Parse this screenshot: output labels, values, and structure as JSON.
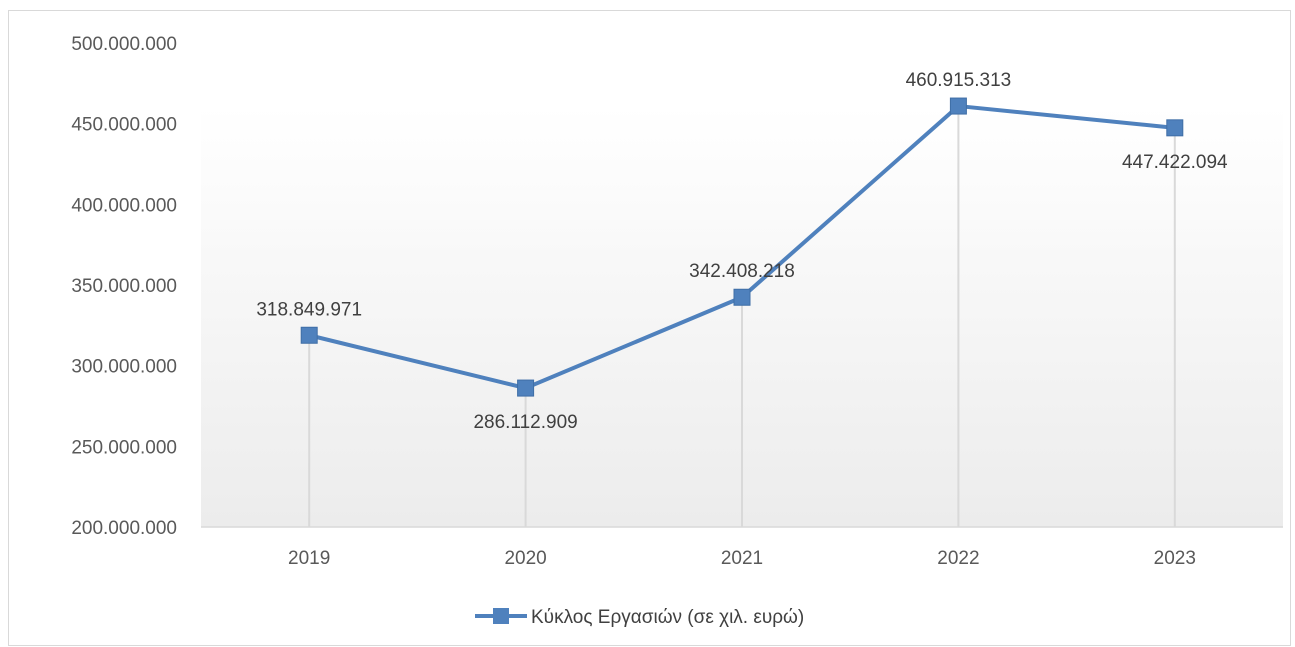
{
  "chart_data": {
    "type": "line",
    "categories": [
      "2019",
      "2020",
      "2021",
      "2022",
      "2023"
    ],
    "series": [
      {
        "name": "Κύκλος Εργασιών (σε χιλ. ευρώ)",
        "values": [
          318849971,
          286112909,
          342408218,
          460915313,
          447422094
        ],
        "labels": [
          "318.849.971",
          "286.112.909",
          "342.408.218",
          "460.915.313",
          "447.422.094"
        ]
      }
    ],
    "ylim": [
      200000000,
      500000000
    ],
    "yticks": [
      "200.000.000",
      "250.000.000",
      "300.000.000",
      "350.000.000",
      "400.000.000",
      "450.000.000",
      "500.000.000"
    ],
    "ytick_values": [
      200000000,
      250000000,
      300000000,
      350000000,
      400000000,
      450000000,
      500000000
    ],
    "drop_lines": true,
    "legend_position": "bottom",
    "colors": {
      "series": "#4f81bd",
      "drop_line": "#d9d9d9",
      "plot_bg_top": "#ffffff",
      "plot_bg_bottom": "#ececec"
    }
  }
}
